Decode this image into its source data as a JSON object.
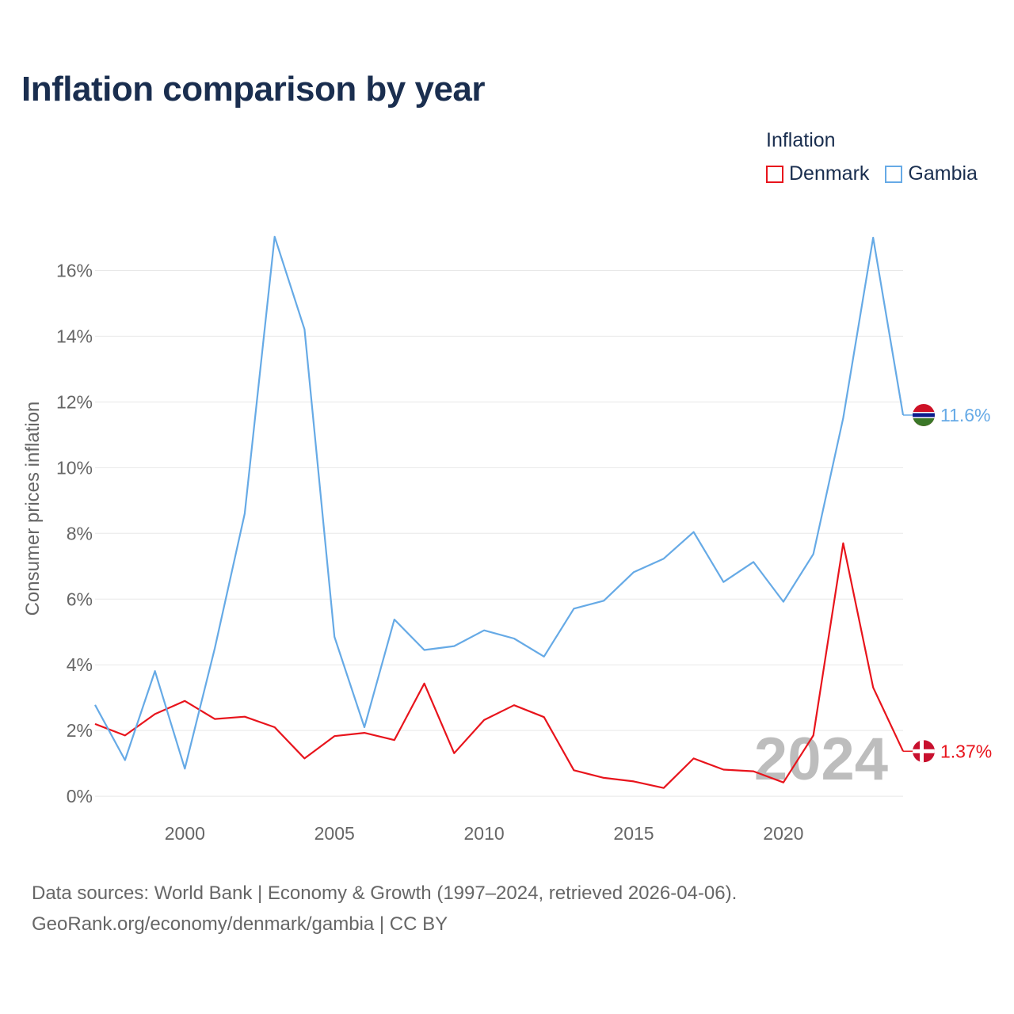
{
  "chart_data": {
    "type": "line",
    "title": "Inflation comparison by year",
    "legend_title": "Inflation",
    "xlabel": "",
    "ylabel": "Consumer prices inflation",
    "xlim": [
      1997,
      2024
    ],
    "ylim": [
      -0.6,
      17
    ],
    "x_ticks": [
      2000,
      2005,
      2010,
      2015,
      2020
    ],
    "y_ticks": [
      0,
      2,
      4,
      6,
      8,
      10,
      12,
      14,
      16
    ],
    "y_tick_suffix": "%",
    "x": [
      1997,
      1998,
      1999,
      2000,
      2001,
      2002,
      2003,
      2004,
      2005,
      2006,
      2007,
      2008,
      2009,
      2010,
      2011,
      2012,
      2013,
      2014,
      2015,
      2016,
      2017,
      2018,
      2019,
      2020,
      2021,
      2022,
      2023,
      2024
    ],
    "series": [
      {
        "name": "Denmark",
        "color": "#e8141c",
        "values": [
          2.2,
          1.85,
          2.5,
          2.9,
          2.35,
          2.42,
          2.1,
          1.15,
          1.83,
          1.93,
          1.71,
          3.43,
          1.31,
          2.32,
          2.77,
          2.41,
          0.79,
          0.56,
          0.45,
          0.25,
          1.15,
          0.81,
          0.76,
          0.42,
          1.85,
          7.7,
          3.31,
          1.37
        ],
        "end_label": "1.37%"
      },
      {
        "name": "Gambia",
        "color": "#66aae6",
        "values": [
          2.78,
          1.1,
          3.81,
          0.84,
          4.5,
          8.6,
          17.03,
          14.21,
          4.85,
          2.1,
          5.38,
          4.45,
          4.57,
          5.05,
          4.8,
          4.25,
          5.71,
          5.95,
          6.82,
          7.23,
          8.04,
          6.52,
          7.13,
          5.92,
          7.37,
          11.51,
          17.0,
          11.6
        ],
        "end_label": "11.6%"
      }
    ],
    "annotation": "2024"
  },
  "footer": {
    "line1": "Data sources: World Bank | Economy & Growth (1997–2024, retrieved 2026-04-06).",
    "line2": "GeoRank.org/economy/denmark/gambia | CC BY"
  }
}
